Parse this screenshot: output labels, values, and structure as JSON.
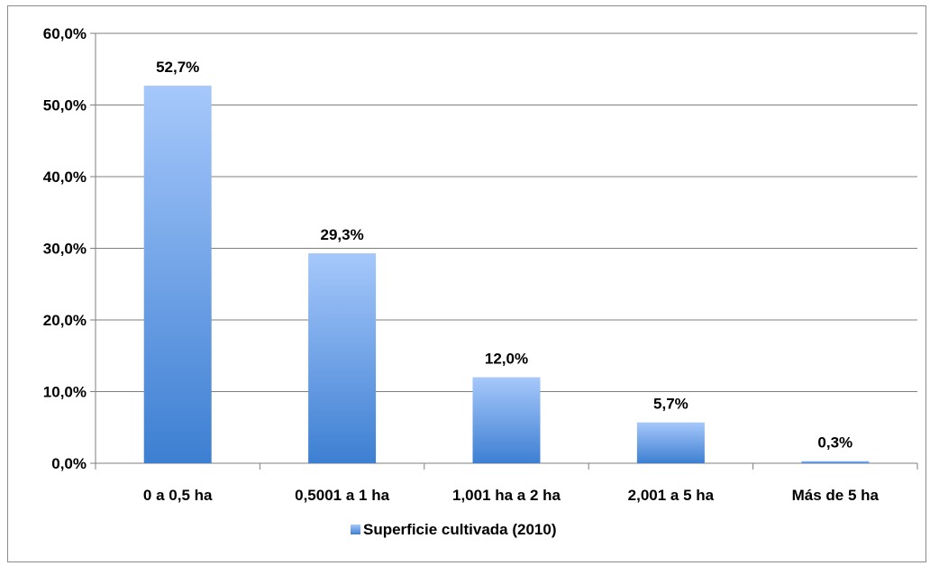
{
  "chart_data": {
    "type": "bar",
    "categories": [
      "0 a 0,5 ha",
      "0,5001 a 1 ha",
      "1,001 ha a 2 ha",
      "2,001 a 5 ha",
      "Más de 5 ha"
    ],
    "series": [
      {
        "name": "Superficie cultivada (2010)",
        "values": [
          52.7,
          29.3,
          12.0,
          5.7,
          0.3
        ],
        "labels": [
          "52,7%",
          "29,3%",
          "12,0%",
          "5,7%",
          "0,3%"
        ]
      }
    ],
    "ylim": [
      0,
      60
    ],
    "yticks": [
      0,
      10,
      20,
      30,
      40,
      50,
      60
    ],
    "ytick_labels": [
      "0,0%",
      "10,0%",
      "20,0%",
      "30,0%",
      "40,0%",
      "50,0%",
      "60,0%"
    ],
    "grid": true,
    "legend_position": "bottom",
    "colors": {
      "bar_top": "#a6c8fb",
      "bar_bottom": "#3d7fd2",
      "grid": "#7f7f7f"
    }
  }
}
